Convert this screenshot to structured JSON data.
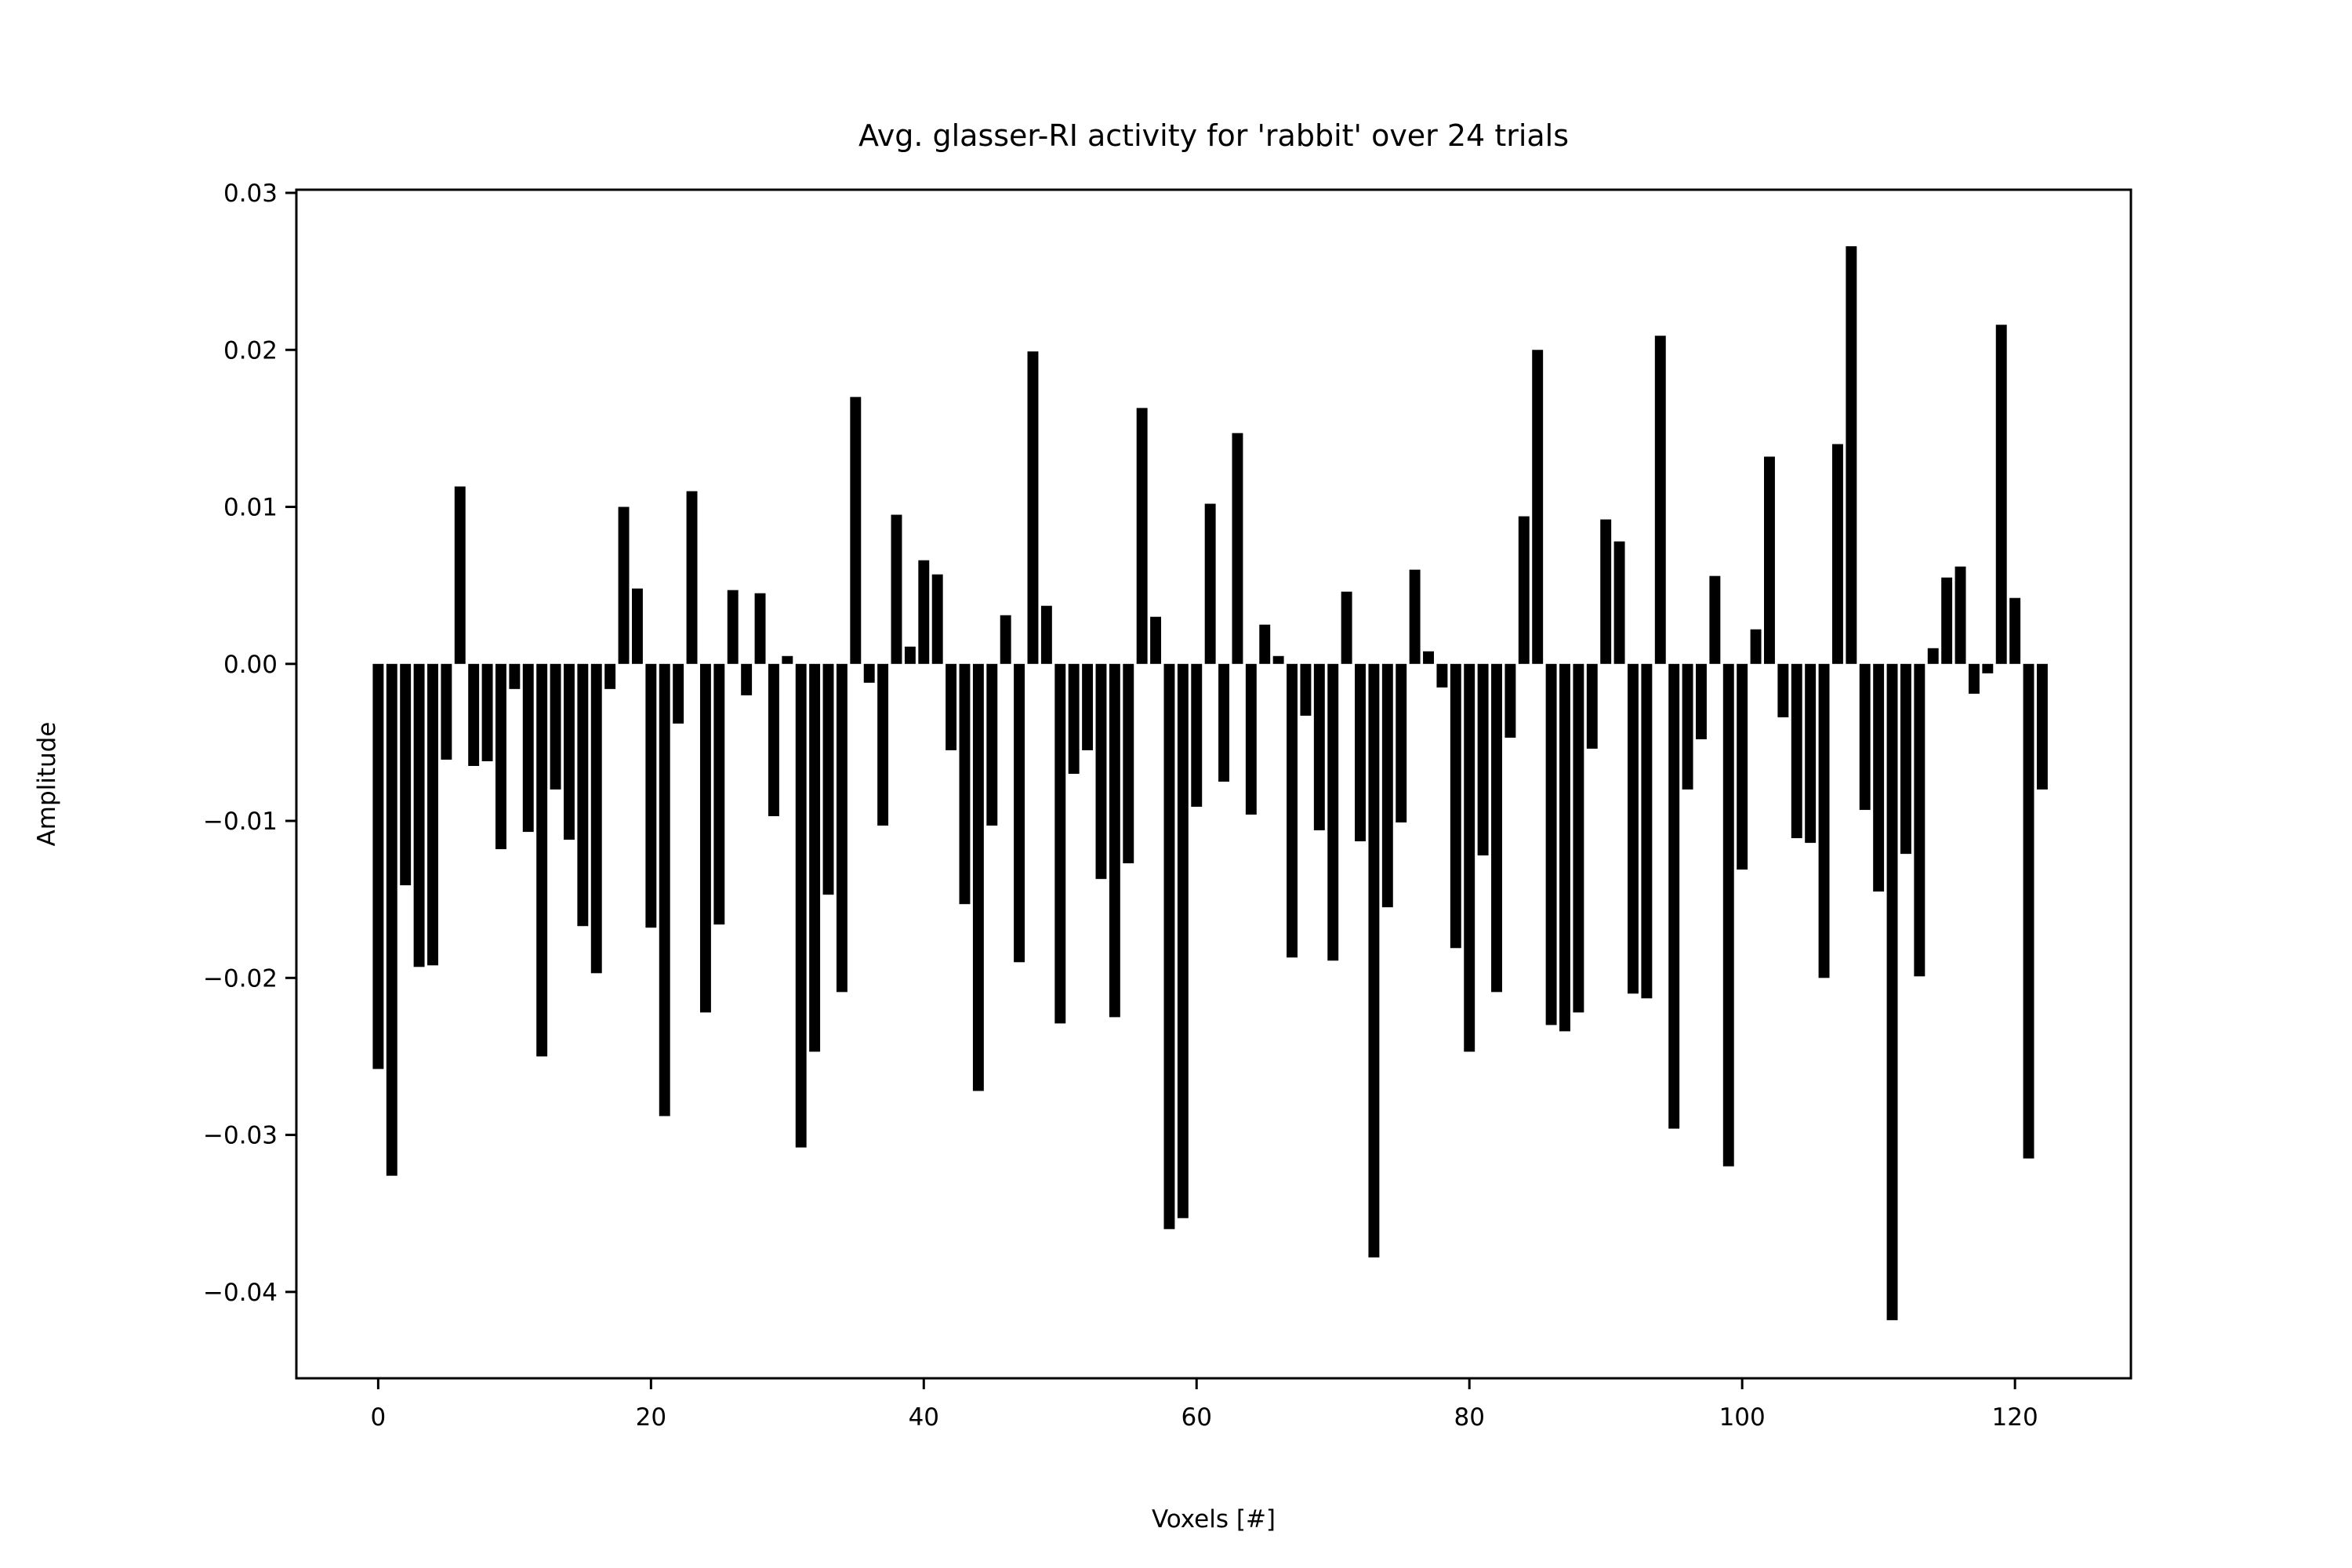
{
  "chart_data": {
    "type": "bar",
    "title": "Avg. glasser-RI activity for 'rabbit' over 24 trials",
    "xlabel": "Voxels [#]",
    "ylabel": "Amplitude",
    "xlim": [
      -6.0,
      128.5
    ],
    "ylim": [
      -0.0455,
      0.0302
    ],
    "xticks": [
      0,
      20,
      40,
      60,
      80,
      100,
      120
    ],
    "xtick_labels": [
      "0",
      "20",
      "40",
      "60",
      "80",
      "100",
      "120"
    ],
    "yticks": [
      0.03,
      0.02,
      0.01,
      0.0,
      -0.01,
      -0.02,
      -0.03,
      -0.04
    ],
    "ytick_labels": [
      "0.03",
      "0.02",
      "0.01",
      "0.00",
      "−0.01",
      "−0.02",
      "−0.03",
      "−0.04"
    ],
    "grid": false,
    "bar_color": "#000000",
    "x": [
      0,
      1,
      2,
      3,
      4,
      5,
      6,
      7,
      8,
      9,
      10,
      11,
      12,
      13,
      14,
      15,
      16,
      17,
      18,
      19,
      20,
      21,
      22,
      23,
      24,
      25,
      26,
      27,
      28,
      29,
      30,
      31,
      32,
      33,
      34,
      35,
      36,
      37,
      38,
      39,
      40,
      41,
      42,
      43,
      44,
      45,
      46,
      47,
      48,
      49,
      50,
      51,
      52,
      53,
      54,
      55,
      56,
      57,
      58,
      59,
      60,
      61,
      62,
      63,
      64,
      65,
      66,
      67,
      68,
      69,
      70,
      71,
      72,
      73,
      74,
      75,
      76,
      77,
      78,
      79,
      80,
      81,
      82,
      83,
      84,
      85,
      86,
      87,
      88,
      89,
      90,
      91,
      92,
      93,
      94,
      95,
      96,
      97,
      98,
      99,
      100,
      101,
      102,
      103,
      104,
      105,
      106,
      107,
      108,
      109,
      110,
      111,
      112,
      113,
      114,
      115,
      116,
      117,
      118,
      119,
      120,
      121,
      122
    ],
    "values": [
      -0.0258,
      -0.0326,
      -0.0141,
      -0.0193,
      -0.0192,
      -0.0061,
      0.0113,
      -0.0065,
      -0.0062,
      -0.0118,
      -0.0016,
      -0.0107,
      -0.025,
      -0.008,
      -0.0112,
      -0.0167,
      -0.0197,
      -0.0016,
      0.01,
      0.0048,
      -0.0168,
      -0.0288,
      -0.0038,
      0.011,
      -0.0222,
      -0.0166,
      0.0047,
      -0.002,
      0.0045,
      -0.0097,
      0.0005,
      -0.0308,
      -0.0247,
      -0.0147,
      -0.0209,
      0.017,
      -0.0012,
      -0.0103,
      0.0095,
      0.0011,
      0.0066,
      0.0057,
      -0.0055,
      -0.0153,
      -0.0272,
      -0.0103,
      0.0031,
      -0.019,
      0.0199,
      0.0037,
      -0.0229,
      -0.007,
      -0.0055,
      -0.0137,
      -0.0225,
      -0.0127,
      0.0163,
      0.003,
      -0.036,
      -0.0353,
      -0.0091,
      0.0102,
      -0.0075,
      0.0147,
      -0.0096,
      0.0025,
      0.0005,
      -0.0187,
      -0.0033,
      -0.0106,
      -0.0189,
      0.0046,
      -0.0113,
      -0.0378,
      -0.0155,
      -0.0101,
      0.006,
      0.0008,
      -0.0015,
      -0.0181,
      -0.0247,
      -0.0122,
      -0.0209,
      -0.0047,
      0.0094,
      0.02,
      -0.023,
      -0.0234,
      -0.0222,
      -0.0054,
      0.0092,
      0.0078,
      -0.021,
      -0.0213,
      0.0209,
      -0.0296,
      -0.008,
      -0.0048,
      0.0056,
      -0.032,
      -0.0131,
      0.0022,
      0.0132,
      -0.0034,
      -0.0111,
      -0.0114,
      -0.02,
      0.014,
      0.0266,
      -0.0093,
      -0.0145,
      -0.0418,
      -0.0121,
      -0.0199,
      0.001,
      0.0055,
      0.0062,
      -0.0019,
      -0.0006,
      0.0216,
      0.0042,
      -0.0315,
      -0.008
    ]
  }
}
